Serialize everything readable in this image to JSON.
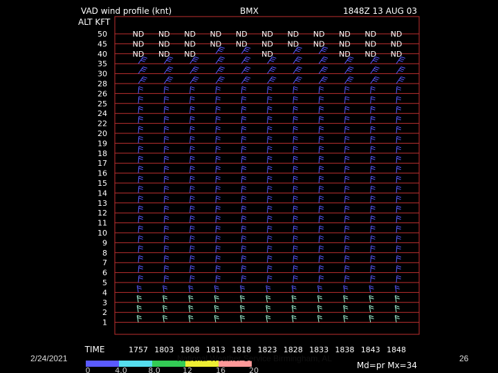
{
  "slide": {
    "date": "2/24/2021",
    "credit": "National Weather Service Birmingham, AL",
    "page_number": "26"
  },
  "chart_data": {
    "type": "wind-profile",
    "title": "VAD wind profile (knt)",
    "station": "BMX",
    "valid_time": "1848Z 13 AUG 03",
    "ylabel": "ALT KFT",
    "xlabel": "TIME",
    "altitudes": [
      "50",
      "45",
      "40",
      "35",
      "30",
      "28",
      "26",
      "25",
      "24",
      "22",
      "20",
      "19",
      "18",
      "17",
      "16",
      "15",
      "14",
      "13",
      "12",
      "11",
      "10",
      "9",
      "8",
      "7",
      "6",
      "5",
      "4",
      "3",
      "2",
      "1"
    ],
    "times": [
      "1757",
      "1803",
      "1808",
      "1813",
      "1818",
      "1823",
      "1828",
      "1833",
      "1838",
      "1843",
      "1848"
    ],
    "no_data_label": "ND",
    "no_data": {
      "50": [
        "1757",
        "1803",
        "1808",
        "1813",
        "1818",
        "1823",
        "1828",
        "1833",
        "1838",
        "1843",
        "1848"
      ],
      "45": [
        "1757",
        "1803",
        "1808",
        "1813",
        "1818",
        "1823",
        "1828",
        "1833",
        "1838",
        "1843",
        "1848"
      ],
      "40": [
        "1757",
        "1803",
        "1808",
        "1823",
        "1838",
        "1843",
        "1848"
      ]
    },
    "legend": {
      "ticks": [
        "0",
        "4.0",
        "8.0",
        "12",
        "16",
        "20"
      ],
      "colors": [
        "#5a5aff",
        "#55ddee",
        "#33cc55",
        "#eeee33",
        "#ff9999"
      ],
      "stats": "Md=pr Mx=34"
    },
    "colors": {
      "barb": "#5a5aff",
      "grid": "#c03030",
      "low_level": "#aaffdd"
    }
  }
}
